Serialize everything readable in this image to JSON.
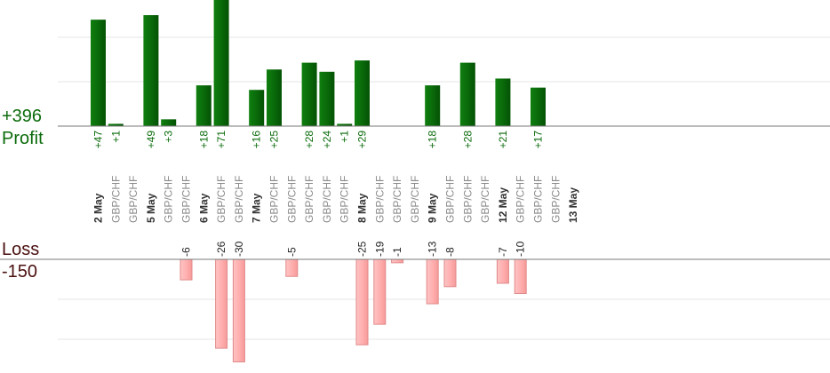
{
  "summary": {
    "profit_total": "+396",
    "profit_label": "Profit",
    "loss_label": "Loss",
    "loss_total": "-150"
  },
  "chart_data": {
    "type": "bar",
    "categories": [
      "2 May",
      "GBP/CHF",
      "GBP/CHF",
      "5 May",
      "GBP/CHF",
      "GBP/CHF",
      "6 May",
      "GBP/CHF",
      "GBP/CHF",
      "7 May",
      "GBP/CHF",
      "GBP/CHF",
      "GBP/CHF",
      "GBP/CHF",
      "GBP/CHF",
      "8 May",
      "GBP/CHF",
      "GBP/CHF",
      "GBP/CHF",
      "9 May",
      "GBP/CHF",
      "GBP/CHF",
      "GBP/CHF",
      "12 May",
      "GBP/CHF",
      "GBP/CHF",
      "GBP/CHF",
      "13 May"
    ],
    "series": [
      {
        "values": [
          47,
          1,
          0,
          49,
          3,
          0,
          18,
          71,
          0,
          16,
          25,
          0,
          28,
          24,
          1,
          29,
          0,
          0,
          0,
          18,
          0,
          28,
          0,
          21,
          0,
          17,
          0,
          0
        ]
      },
      {
        "values": [
          0,
          0,
          0,
          0,
          0,
          -6,
          0,
          -26,
          -30,
          0,
          0,
          -5,
          0,
          0,
          0,
          -25,
          -19,
          -1,
          0,
          -13,
          -8,
          0,
          0,
          -7,
          -10,
          0,
          0,
          0
        ]
      }
    ],
    "profit_labels": [
      "+47",
      "+1",
      "",
      "+49",
      "+3",
      "",
      "+18",
      "+71",
      "",
      "+16",
      "+25",
      "",
      "+28",
      "+24",
      "+1",
      "+29",
      "",
      "",
      "",
      "+18",
      "",
      "+28",
      "",
      "+21",
      "",
      "+17",
      "",
      ""
    ],
    "loss_labels": [
      "",
      "",
      "",
      "",
      "",
      "-6",
      "",
      "-26",
      "-30",
      "",
      "",
      "-5",
      "",
      "",
      "",
      "-25",
      "-19",
      "-1",
      "",
      "-13",
      "-8",
      "",
      "",
      "-7",
      "-10",
      "",
      "",
      ""
    ],
    "colors": {
      "profit": "#0b6b0b",
      "loss": "#ffb3b3",
      "loss_edge": "#e08a8a"
    }
  }
}
